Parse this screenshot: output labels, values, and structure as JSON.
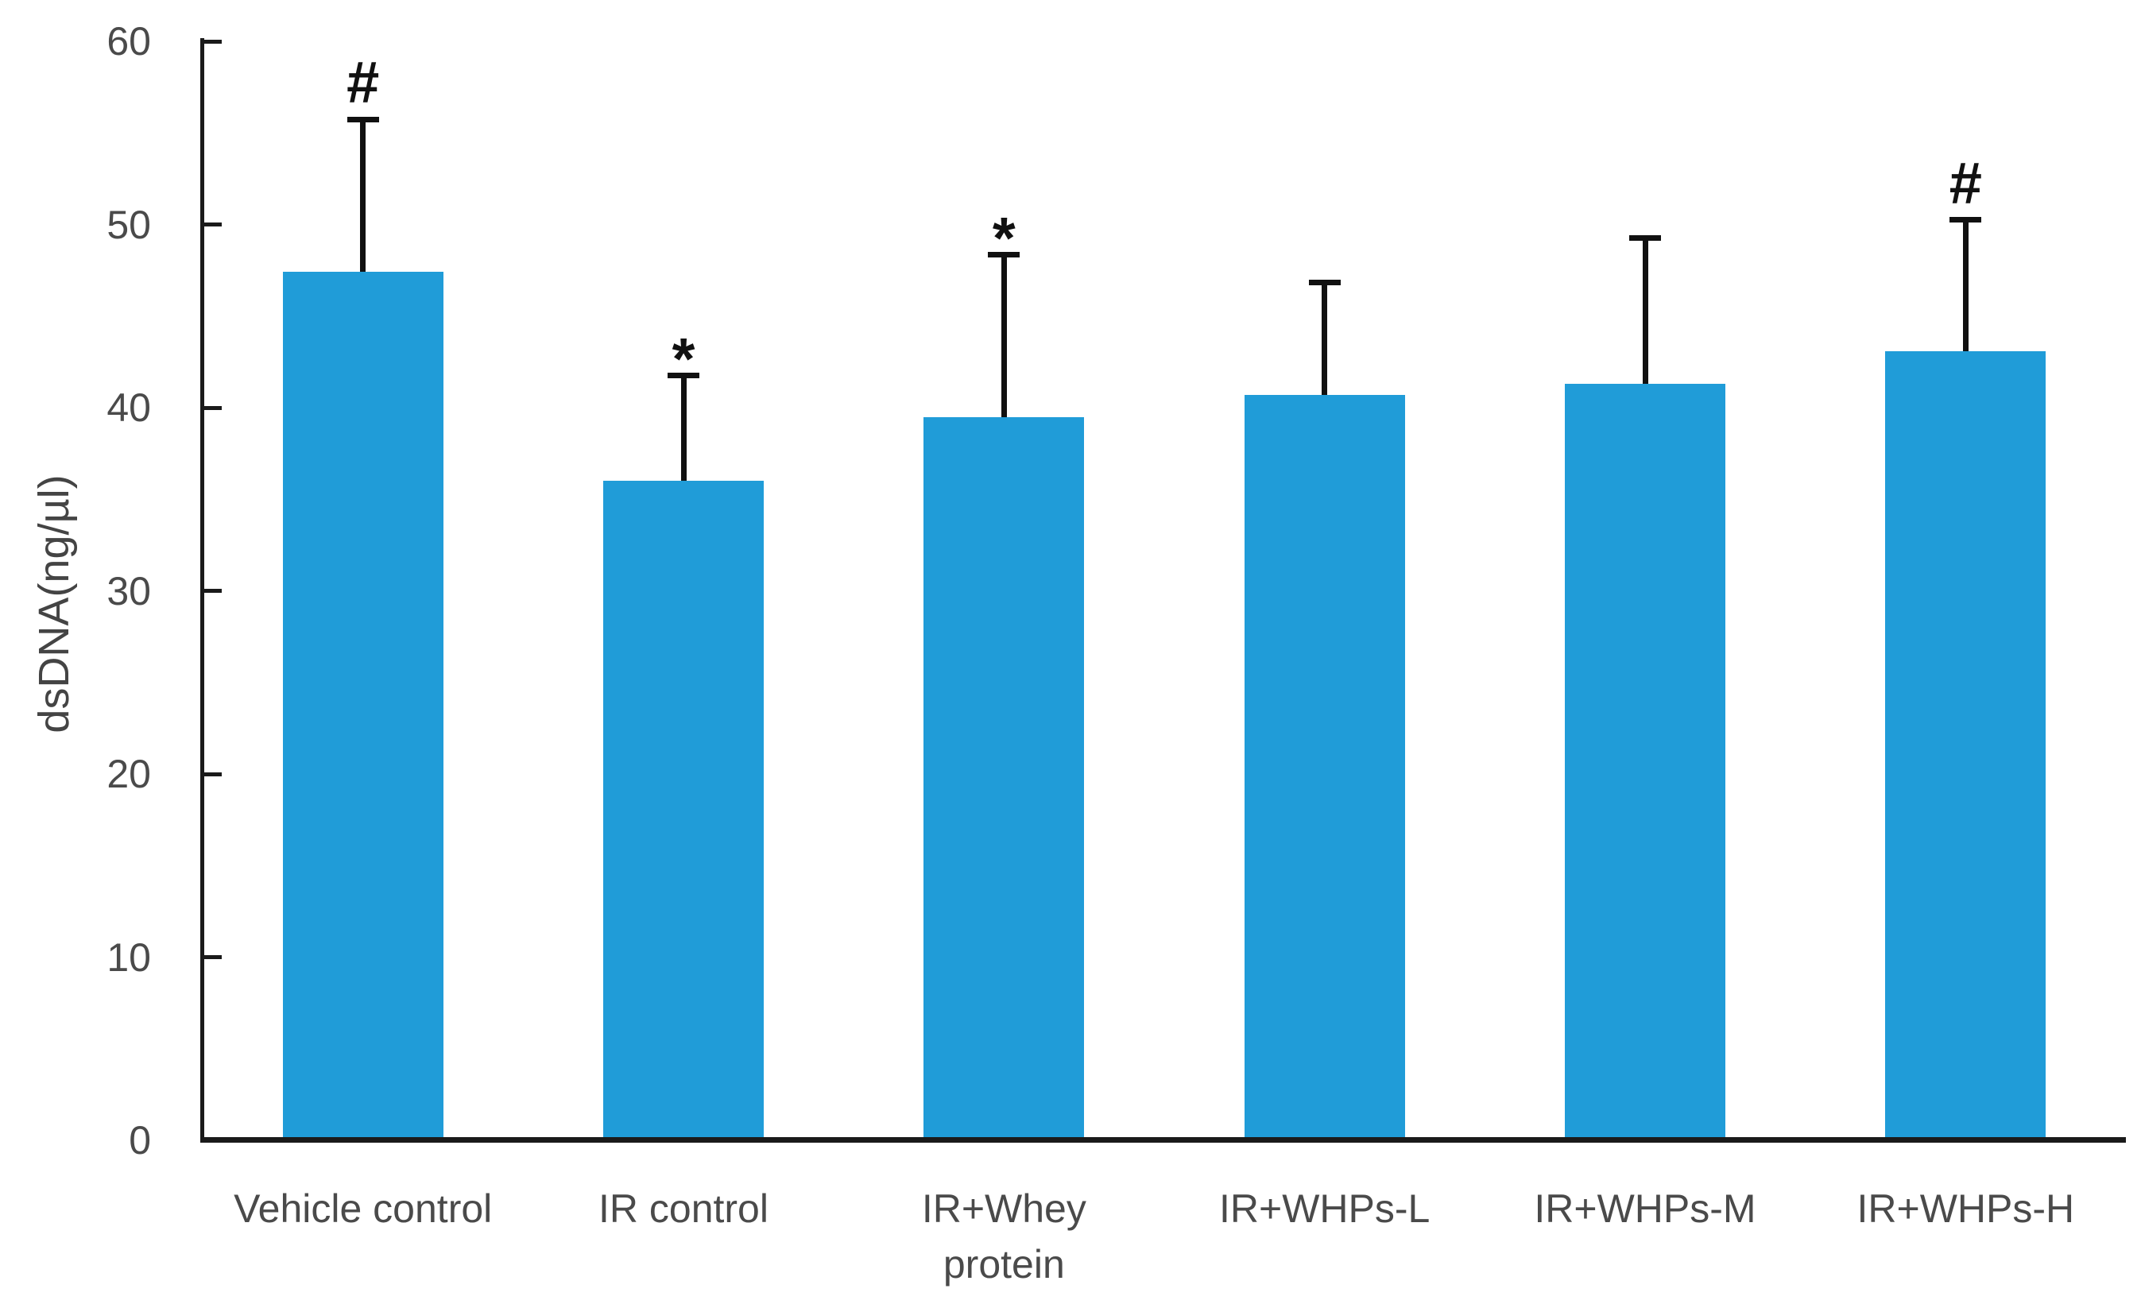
{
  "chart_data": {
    "type": "bar",
    "title": "",
    "xlabel": "",
    "ylabel": "dsDNA(ng/µl)",
    "categories": [
      "Vehicle control",
      "IR control",
      "IR+Whey protein",
      "IR+WHPs-L",
      "IR+WHPs-M",
      "IR+WHPs-H"
    ],
    "category_labels_display": [
      "Vehicle control",
      "IR control",
      "IR+Whey\nprotein",
      "IR+WHPs-L",
      "IR+WHPs-M",
      "IR+WHPs-H"
    ],
    "values": [
      47.4,
      36.0,
      39.5,
      40.7,
      41.3,
      43.1
    ],
    "error_bars_upper": [
      8.5,
      5.9,
      9.0,
      6.3,
      8.1,
      7.3
    ],
    "significance_markers": [
      "#",
      "*",
      "*",
      "",
      "",
      "#"
    ],
    "ylim": [
      0,
      60
    ],
    "yticks": [
      0,
      10,
      20,
      30,
      40,
      50,
      60
    ],
    "grid": false,
    "legend": false,
    "series_name": "dsDNA",
    "bar_color": "#209CD8",
    "axis_color": "#1a1a1a",
    "error_bar_color": "#111111",
    "text_color": "#4a4a4a"
  }
}
